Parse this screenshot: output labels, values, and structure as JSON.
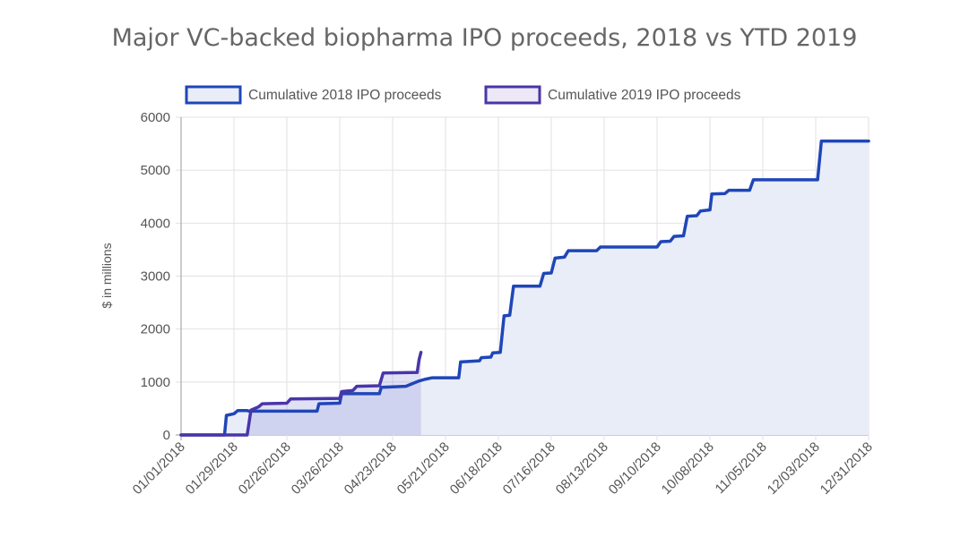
{
  "chart_data": {
    "type": "line",
    "title": "Major VC-backed biopharma IPO proceeds, 2018 vs YTD 2019",
    "ylabel": "$ in millions",
    "xlabel": "",
    "ylim": [
      0,
      6000
    ],
    "yticks": [
      0,
      1000,
      2000,
      3000,
      4000,
      5000,
      6000
    ],
    "xlim": [
      "01/01/2018",
      "12/31/2018"
    ],
    "xticks": [
      "01/01/2018",
      "01/29/2018",
      "02/26/2018",
      "03/26/2018",
      "04/23/2018",
      "05/21/2018",
      "06/18/2018",
      "07/16/2018",
      "08/13/2018",
      "09/10/2018",
      "10/08/2018",
      "11/05/2018",
      "12/03/2018",
      "12/31/2018"
    ],
    "grid": true,
    "legend_position": "top",
    "series": [
      {
        "name": "Cumulative 2018 IPO proceeds",
        "color": "#1f46b8",
        "fill": "#e9edf8",
        "points": [
          [
            "01/01/2018",
            0
          ],
          [
            "01/24/2018",
            0
          ],
          [
            "01/25/2018",
            370
          ],
          [
            "01/29/2018",
            400
          ],
          [
            "01/31/2018",
            460
          ],
          [
            "02/05/2018",
            460
          ],
          [
            "02/06/2018",
            450
          ],
          [
            "03/14/2018",
            450
          ],
          [
            "03/15/2018",
            590
          ],
          [
            "03/26/2018",
            600
          ],
          [
            "03/27/2018",
            780
          ],
          [
            "04/16/2018",
            780
          ],
          [
            "04/17/2018",
            900
          ],
          [
            "04/30/2018",
            920
          ],
          [
            "05/07/2018",
            1020
          ],
          [
            "05/10/2018",
            1050
          ],
          [
            "05/14/2018",
            1080
          ],
          [
            "05/28/2018",
            1080
          ],
          [
            "05/29/2018",
            1380
          ],
          [
            "06/08/2018",
            1400
          ],
          [
            "06/09/2018",
            1460
          ],
          [
            "06/14/2018",
            1470
          ],
          [
            "06/15/2018",
            1550
          ],
          [
            "06/19/2018",
            1560
          ],
          [
            "06/21/2018",
            2250
          ],
          [
            "06/24/2018",
            2260
          ],
          [
            "06/26/2018",
            2810
          ],
          [
            "07/10/2018",
            2810
          ],
          [
            "07/12/2018",
            3050
          ],
          [
            "07/16/2018",
            3060
          ],
          [
            "07/18/2018",
            3340
          ],
          [
            "07/23/2018",
            3360
          ],
          [
            "07/25/2018",
            3480
          ],
          [
            "08/09/2018",
            3480
          ],
          [
            "08/11/2018",
            3550
          ],
          [
            "09/10/2018",
            3550
          ],
          [
            "09/12/2018",
            3650
          ],
          [
            "09/17/2018",
            3660
          ],
          [
            "09/19/2018",
            3750
          ],
          [
            "09/24/2018",
            3760
          ],
          [
            "09/26/2018",
            4130
          ],
          [
            "10/01/2018",
            4140
          ],
          [
            "10/03/2018",
            4230
          ],
          [
            "10/08/2018",
            4250
          ],
          [
            "10/09/2018",
            4550
          ],
          [
            "10/16/2018",
            4560
          ],
          [
            "10/18/2018",
            4620
          ],
          [
            "10/29/2018",
            4620
          ],
          [
            "10/31/2018",
            4820
          ],
          [
            "12/04/2018",
            4820
          ],
          [
            "12/06/2018",
            5550
          ],
          [
            "12/31/2018",
            5550
          ]
        ]
      },
      {
        "name": "Cumulative 2019 IPO proceeds",
        "color": "#4a35a8",
        "fill": "rgba(120,120,210,0.22)",
        "points": [
          [
            "01/01/2018",
            0
          ],
          [
            "02/05/2018",
            0
          ],
          [
            "02/07/2018",
            470
          ],
          [
            "02/11/2018",
            530
          ],
          [
            "02/13/2018",
            590
          ],
          [
            "02/26/2018",
            600
          ],
          [
            "02/28/2018",
            680
          ],
          [
            "03/26/2018",
            690
          ],
          [
            "03/27/2018",
            820
          ],
          [
            "04/02/2018",
            840
          ],
          [
            "04/04/2018",
            920
          ],
          [
            "04/16/2018",
            930
          ],
          [
            "04/18/2018",
            1170
          ],
          [
            "05/06/2018",
            1180
          ],
          [
            "05/07/2018",
            1420
          ],
          [
            "05/08/2018",
            1560
          ]
        ]
      }
    ]
  }
}
